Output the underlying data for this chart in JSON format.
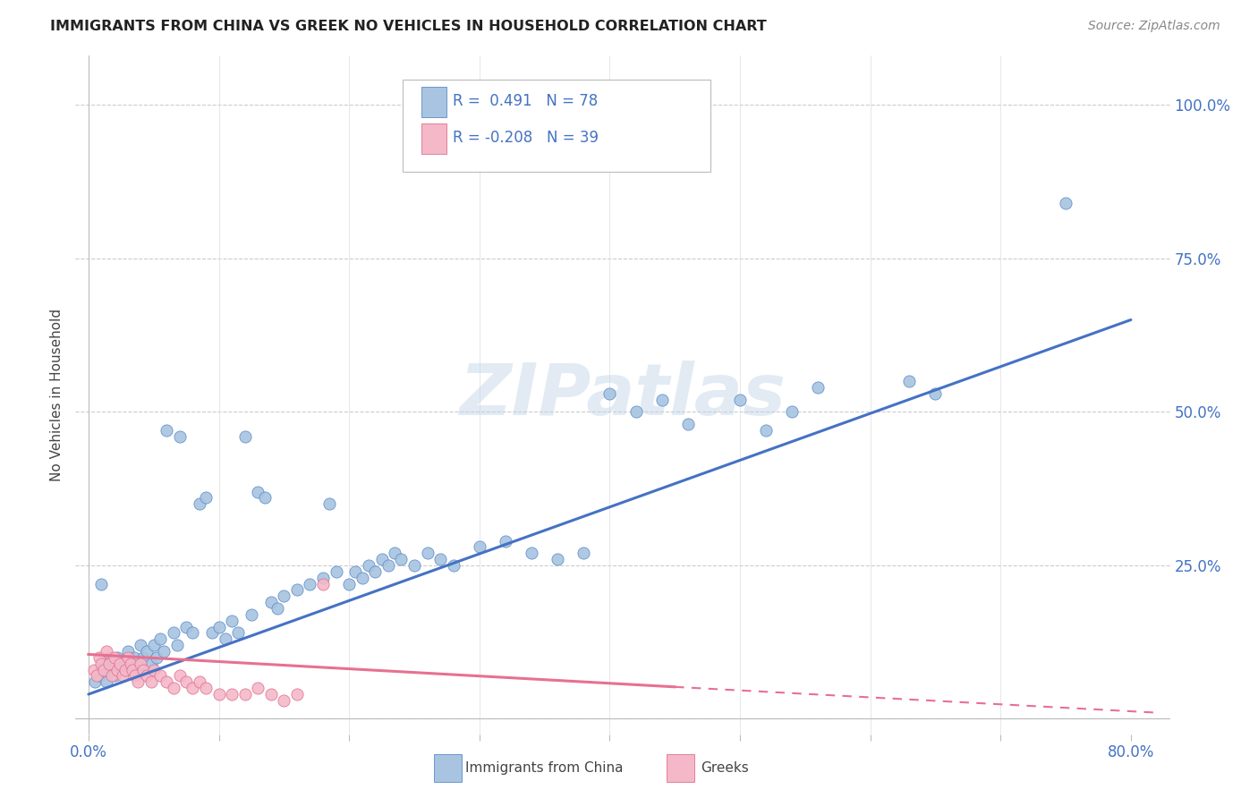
{
  "title": "IMMIGRANTS FROM CHINA VS GREEK NO VEHICLES IN HOUSEHOLD CORRELATION CHART",
  "source": "Source: ZipAtlas.com",
  "ylabel": "No Vehicles in Household",
  "blue_R": "0.491",
  "blue_N": "78",
  "pink_R": "-0.208",
  "pink_N": "39",
  "blue_color": "#a8c4e0",
  "blue_edge_color": "#5b8cc8",
  "blue_line_color": "#4472c4",
  "pink_color": "#f4b8c8",
  "pink_edge_color": "#e07090",
  "pink_line_color": "#e87090",
  "tick_color": "#4472c4",
  "watermark": "ZIPatlas",
  "blue_x": [
    0.005,
    0.008,
    0.01,
    0.012,
    0.014,
    0.016,
    0.018,
    0.02,
    0.022,
    0.025,
    0.028,
    0.03,
    0.032,
    0.035,
    0.038,
    0.04,
    0.042,
    0.045,
    0.048,
    0.05,
    0.052,
    0.055,
    0.058,
    0.06,
    0.065,
    0.068,
    0.07,
    0.075,
    0.08,
    0.085,
    0.09,
    0.095,
    0.1,
    0.105,
    0.11,
    0.115,
    0.12,
    0.125,
    0.13,
    0.135,
    0.14,
    0.145,
    0.15,
    0.16,
    0.17,
    0.18,
    0.185,
    0.19,
    0.2,
    0.205,
    0.21,
    0.215,
    0.22,
    0.225,
    0.23,
    0.235,
    0.24,
    0.25,
    0.26,
    0.27,
    0.28,
    0.3,
    0.32,
    0.34,
    0.36,
    0.38,
    0.4,
    0.42,
    0.44,
    0.46,
    0.5,
    0.52,
    0.54,
    0.56,
    0.63,
    0.65,
    0.75,
    0.01
  ],
  "blue_y": [
    0.06,
    0.07,
    0.08,
    0.09,
    0.06,
    0.1,
    0.08,
    0.07,
    0.1,
    0.09,
    0.08,
    0.11,
    0.09,
    0.1,
    0.08,
    0.12,
    0.1,
    0.11,
    0.09,
    0.12,
    0.1,
    0.13,
    0.11,
    0.47,
    0.14,
    0.12,
    0.46,
    0.15,
    0.14,
    0.35,
    0.36,
    0.14,
    0.15,
    0.13,
    0.16,
    0.14,
    0.46,
    0.17,
    0.37,
    0.36,
    0.19,
    0.18,
    0.2,
    0.21,
    0.22,
    0.23,
    0.35,
    0.24,
    0.22,
    0.24,
    0.23,
    0.25,
    0.24,
    0.26,
    0.25,
    0.27,
    0.26,
    0.25,
    0.27,
    0.26,
    0.25,
    0.28,
    0.29,
    0.27,
    0.26,
    0.27,
    0.53,
    0.5,
    0.52,
    0.48,
    0.52,
    0.47,
    0.5,
    0.54,
    0.55,
    0.53,
    0.84,
    0.22
  ],
  "pink_x": [
    0.004,
    0.006,
    0.008,
    0.01,
    0.012,
    0.014,
    0.016,
    0.018,
    0.02,
    0.022,
    0.024,
    0.026,
    0.028,
    0.03,
    0.032,
    0.034,
    0.036,
    0.038,
    0.04,
    0.042,
    0.045,
    0.048,
    0.05,
    0.055,
    0.06,
    0.065,
    0.07,
    0.075,
    0.08,
    0.085,
    0.09,
    0.1,
    0.11,
    0.12,
    0.13,
    0.14,
    0.15,
    0.16,
    0.18
  ],
  "pink_y": [
    0.08,
    0.07,
    0.1,
    0.09,
    0.08,
    0.11,
    0.09,
    0.07,
    0.1,
    0.08,
    0.09,
    0.07,
    0.08,
    0.1,
    0.09,
    0.08,
    0.07,
    0.06,
    0.09,
    0.08,
    0.07,
    0.06,
    0.08,
    0.07,
    0.06,
    0.05,
    0.07,
    0.06,
    0.05,
    0.06,
    0.05,
    0.04,
    0.04,
    0.04,
    0.05,
    0.04,
    0.03,
    0.04,
    0.22
  ]
}
